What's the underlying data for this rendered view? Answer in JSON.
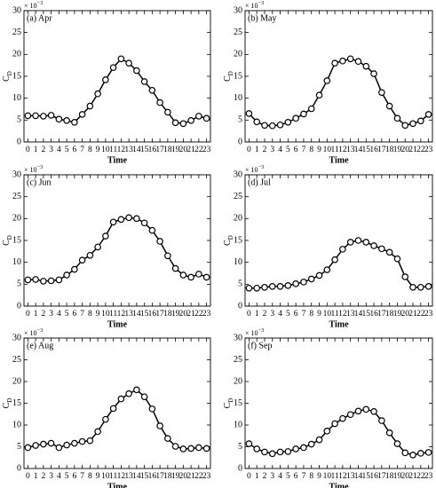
{
  "chart_data": [
    {
      "type": "line",
      "title": "(a) Apr",
      "xlabel": "Time",
      "ylabel": "C",
      "ylabel_sub": "D",
      "scale_base": "× 10",
      "scale_exponent": "−3",
      "color": "#000000",
      "x": [
        0,
        1,
        2,
        3,
        4,
        5,
        6,
        7,
        8,
        9,
        10,
        11,
        12,
        13,
        14,
        15,
        16,
        17,
        18,
        19,
        20,
        21,
        22,
        23
      ],
      "values": [
        6,
        6,
        5.9,
        6.1,
        5.2,
        4.9,
        4.5,
        6.3,
        8.2,
        11,
        14.2,
        17,
        19,
        18,
        16.3,
        13.8,
        11.8,
        9,
        6.8,
        4.4,
        4.2,
        4.9,
        5.9,
        5.4
      ],
      "xlim": [
        -0.5,
        23.5
      ],
      "xticks": [
        0,
        1,
        2,
        3,
        4,
        5,
        6,
        7,
        8,
        9,
        10,
        11,
        12,
        13,
        14,
        15,
        16,
        17,
        18,
        19,
        20,
        21,
        22,
        23
      ],
      "ylim": [
        0,
        30
      ],
      "yticks": [
        0,
        5,
        10,
        15,
        20,
        25,
        30
      ]
    },
    {
      "type": "line",
      "title": "(b) May",
      "xlabel": "Time",
      "ylabel": "C",
      "ylabel_sub": "D",
      "scale_base": "× 10",
      "scale_exponent": "−3",
      "color": "#000000",
      "x": [
        0,
        1,
        2,
        3,
        4,
        5,
        6,
        7,
        8,
        9,
        10,
        11,
        12,
        13,
        14,
        15,
        16,
        17,
        18,
        19,
        20,
        21,
        22,
        23
      ],
      "values": [
        6.5,
        4.6,
        3.8,
        3.7,
        3.9,
        4.5,
        5.4,
        6.4,
        7.6,
        10.7,
        14,
        18,
        18.5,
        19,
        18.4,
        17.3,
        15.6,
        11.3,
        8.2,
        5.4,
        3.8,
        4.2,
        4.8,
        6.3
      ],
      "xlim": [
        -0.5,
        23.5
      ],
      "xticks": [
        0,
        1,
        2,
        3,
        4,
        5,
        6,
        7,
        8,
        9,
        10,
        11,
        12,
        13,
        14,
        15,
        16,
        17,
        18,
        19,
        20,
        21,
        22,
        23
      ],
      "ylim": [
        0,
        30
      ],
      "yticks": [
        0,
        5,
        10,
        15,
        20,
        25,
        30
      ]
    },
    {
      "type": "line",
      "title": "(c) Jun",
      "xlabel": "Time",
      "ylabel": "C",
      "ylabel_sub": "D",
      "scale_base": "× 10",
      "scale_exponent": "−3",
      "color": "#000000",
      "x": [
        0,
        1,
        2,
        3,
        4,
        5,
        6,
        7,
        8,
        9,
        10,
        11,
        12,
        13,
        14,
        15,
        16,
        17,
        18,
        19,
        20,
        21,
        22,
        23
      ],
      "values": [
        6,
        6.1,
        5.7,
        5.8,
        6,
        7.1,
        8.4,
        10.5,
        11.6,
        13.5,
        16,
        19.2,
        19.8,
        20.2,
        20,
        19,
        17.3,
        14.8,
        11.5,
        8.6,
        7.1,
        6.6,
        7.3,
        6.6
      ],
      "xlim": [
        -0.5,
        23.5
      ],
      "xticks": [
        0,
        1,
        2,
        3,
        4,
        5,
        6,
        7,
        8,
        9,
        10,
        11,
        12,
        13,
        14,
        15,
        16,
        17,
        18,
        19,
        20,
        21,
        22,
        23
      ],
      "ylim": [
        0,
        30
      ],
      "yticks": [
        0,
        5,
        10,
        15,
        20,
        25,
        30
      ]
    },
    {
      "type": "line",
      "title": "(d) Jul",
      "xlabel": "Time",
      "ylabel": "C",
      "ylabel_sub": "D",
      "scale_base": "× 10",
      "scale_exponent": "−3",
      "color": "#000000",
      "x": [
        0,
        1,
        2,
        3,
        4,
        5,
        6,
        7,
        8,
        9,
        10,
        11,
        12,
        13,
        14,
        15,
        16,
        17,
        18,
        19,
        20,
        21,
        22,
        23
      ],
      "values": [
        4.1,
        4.1,
        4.3,
        4.5,
        4.5,
        4.7,
        5.1,
        5.5,
        6.2,
        7,
        8.3,
        10.6,
        13,
        14.6,
        15,
        14.6,
        13.8,
        13.1,
        12.3,
        10.8,
        6.7,
        4.3,
        4.3,
        4.5
      ],
      "xlim": [
        -0.5,
        23.5
      ],
      "xticks": [
        0,
        1,
        2,
        3,
        4,
        5,
        6,
        7,
        8,
        9,
        10,
        11,
        12,
        13,
        14,
        15,
        16,
        17,
        18,
        19,
        20,
        21,
        22,
        23
      ],
      "ylim": [
        0,
        30
      ],
      "yticks": [
        0,
        5,
        10,
        15,
        20,
        25,
        30
      ]
    },
    {
      "type": "line",
      "title": "(e) Aug",
      "xlabel": "Time",
      "ylabel": "C",
      "ylabel_sub": "D",
      "scale_base": "× 10",
      "scale_exponent": "−3",
      "color": "#000000",
      "x": [
        0,
        1,
        2,
        3,
        4,
        5,
        6,
        7,
        8,
        9,
        10,
        11,
        12,
        13,
        14,
        15,
        16,
        17,
        18,
        19,
        20,
        21,
        22,
        23
      ],
      "values": [
        4.8,
        5.3,
        5.6,
        5.8,
        4.8,
        5.4,
        5.8,
        6.2,
        6.4,
        8.5,
        11.3,
        13.8,
        16,
        17.2,
        18.1,
        16.5,
        13.7,
        9.8,
        6.9,
        5.1,
        4.5,
        4.6,
        4.8,
        4.6
      ],
      "xlim": [
        -0.5,
        23.5
      ],
      "xticks": [
        0,
        1,
        2,
        3,
        4,
        5,
        6,
        7,
        8,
        9,
        10,
        11,
        12,
        13,
        14,
        15,
        16,
        17,
        18,
        19,
        20,
        21,
        22,
        23
      ],
      "ylim": [
        0,
        30
      ],
      "yticks": [
        0,
        5,
        10,
        15,
        20,
        25,
        30
      ]
    },
    {
      "type": "line",
      "title": "(f) Sep",
      "xlabel": "Time",
      "ylabel": "C",
      "ylabel_sub": "D",
      "scale_base": "× 10",
      "scale_exponent": "−3",
      "color": "#000000",
      "x": [
        0,
        1,
        2,
        3,
        4,
        5,
        6,
        7,
        8,
        9,
        10,
        11,
        12,
        13,
        14,
        15,
        16,
        17,
        18,
        19,
        20,
        21,
        22,
        23
      ],
      "values": [
        5.7,
        4.5,
        3.8,
        3.4,
        3.8,
        3.9,
        4.5,
        4.8,
        5.6,
        6.6,
        8.6,
        10.3,
        11.5,
        12.4,
        13.2,
        13.6,
        13.1,
        11,
        8.2,
        5.7,
        3.6,
        3.1,
        3.5,
        3.7
      ],
      "xlim": [
        -0.5,
        23.5
      ],
      "xticks": [
        0,
        1,
        2,
        3,
        4,
        5,
        6,
        7,
        8,
        9,
        10,
        11,
        12,
        13,
        14,
        15,
        16,
        17,
        18,
        19,
        20,
        21,
        22,
        23
      ],
      "ylim": [
        0,
        30
      ],
      "yticks": [
        0,
        5,
        10,
        15,
        20,
        25,
        30
      ]
    }
  ]
}
